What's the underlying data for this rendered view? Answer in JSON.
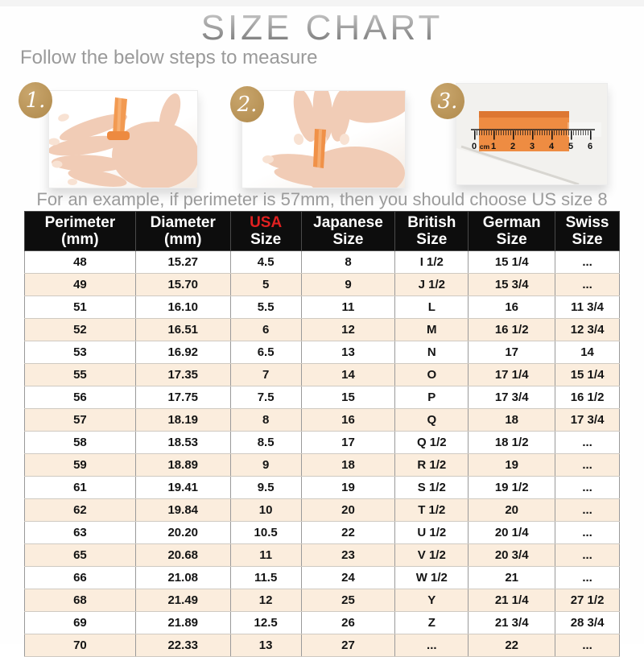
{
  "header": {
    "title": "SIZE CHART",
    "subtitle": "Follow the below steps to measure"
  },
  "steps": [
    {
      "number": "1."
    },
    {
      "number": "2."
    },
    {
      "number": "3."
    }
  ],
  "ruler": {
    "marks": [
      "0",
      "cm",
      "1",
      "2",
      "3",
      "4",
      "5",
      "6"
    ]
  },
  "note": "For an example, if perimeter is 57mm, then you should choose US size 8",
  "colors": {
    "accent_red": "#e02020",
    "badge_gold": "#b8935a",
    "alt_row_peach": "#fbeddd",
    "header_bg": "#0d0d0d",
    "tape_orange": "#ee8c42"
  },
  "chart_data": {
    "type": "table",
    "title": "SIZE CHART",
    "columns": [
      {
        "line1": "Perimeter",
        "line2": "(mm)",
        "accent": false
      },
      {
        "line1": "Diameter",
        "line2": "(mm)",
        "accent": false
      },
      {
        "line1": "USA",
        "line2": "Size",
        "accent": true
      },
      {
        "line1": "Japanese",
        "line2": "Size",
        "accent": false
      },
      {
        "line1": "British",
        "line2": "Size",
        "accent": false
      },
      {
        "line1": "German",
        "line2": "Size",
        "accent": false
      },
      {
        "line1": "Swiss",
        "line2": "Size",
        "accent": false
      }
    ],
    "rows": [
      [
        "48",
        "15.27",
        "4.5",
        "8",
        "I 1/2",
        "15 1/4",
        "..."
      ],
      [
        "49",
        "15.70",
        "5",
        "9",
        "J 1/2",
        "15 3/4",
        "..."
      ],
      [
        "51",
        "16.10",
        "5.5",
        "11",
        "L",
        "16",
        "11 3/4"
      ],
      [
        "52",
        "16.51",
        "6",
        "12",
        "M",
        "16 1/2",
        "12 3/4"
      ],
      [
        "53",
        "16.92",
        "6.5",
        "13",
        "N",
        "17",
        "14"
      ],
      [
        "55",
        "17.35",
        "7",
        "14",
        "O",
        "17 1/4",
        "15 1/4"
      ],
      [
        "56",
        "17.75",
        "7.5",
        "15",
        "P",
        "17 3/4",
        "16 1/2"
      ],
      [
        "57",
        "18.19",
        "8",
        "16",
        "Q",
        "18",
        "17 3/4"
      ],
      [
        "58",
        "18.53",
        "8.5",
        "17",
        "Q 1/2",
        "18 1/2",
        "..."
      ],
      [
        "59",
        "18.89",
        "9",
        "18",
        "R 1/2",
        "19",
        "..."
      ],
      [
        "61",
        "19.41",
        "9.5",
        "19",
        "S 1/2",
        "19 1/2",
        "..."
      ],
      [
        "62",
        "19.84",
        "10",
        "20",
        "T 1/2",
        "20",
        "..."
      ],
      [
        "63",
        "20.20",
        "10.5",
        "22",
        "U 1/2",
        "20 1/4",
        "..."
      ],
      [
        "65",
        "20.68",
        "11",
        "23",
        "V 1/2",
        "20 3/4",
        "..."
      ],
      [
        "66",
        "21.08",
        "11.5",
        "24",
        "W 1/2",
        "21",
        "..."
      ],
      [
        "68",
        "21.49",
        "12",
        "25",
        "Y",
        "21 1/4",
        "27 1/2"
      ],
      [
        "69",
        "21.89",
        "12.5",
        "26",
        "Z",
        "21 3/4",
        "28 3/4"
      ],
      [
        "70",
        "22.33",
        "13",
        "27",
        "...",
        "22",
        "..."
      ]
    ]
  }
}
